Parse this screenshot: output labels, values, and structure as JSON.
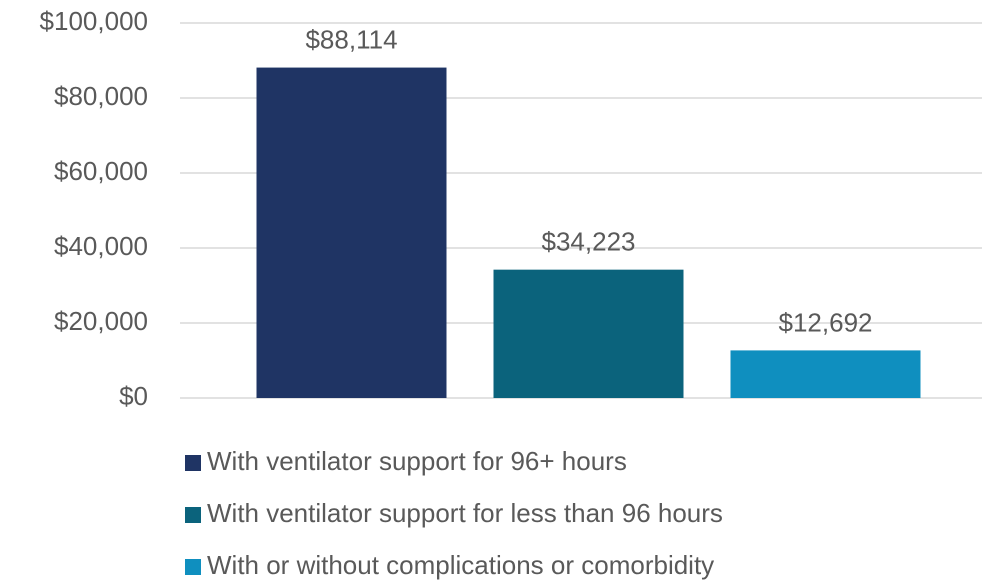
{
  "chart_data": {
    "type": "bar",
    "series": [
      {
        "name": "With ventilator support for 96+ hours",
        "color": "#1f3464",
        "values": [
          88114
        ],
        "value_labels": [
          "$88,114"
        ]
      },
      {
        "name": "With ventilator support for less than 96 hours",
        "color": "#0b637c",
        "values": [
          34223
        ],
        "value_labels": [
          "$34,223"
        ]
      },
      {
        "name": "With or without complications or comorbidity",
        "color": "#0f8fbf",
        "values": [
          12692
        ],
        "value_labels": [
          "$12,692"
        ]
      }
    ],
    "ylim": [
      0,
      100000
    ],
    "yticks": [
      {
        "value": 0,
        "label": "$0"
      },
      {
        "value": 20000,
        "label": "$20,000"
      },
      {
        "value": 40000,
        "label": "$40,000"
      },
      {
        "value": 60000,
        "label": "$60,000"
      },
      {
        "value": 80000,
        "label": "$80,000"
      },
      {
        "value": 100000,
        "label": "$100,000"
      }
    ],
    "grid": true,
    "legend": "bottom"
  }
}
